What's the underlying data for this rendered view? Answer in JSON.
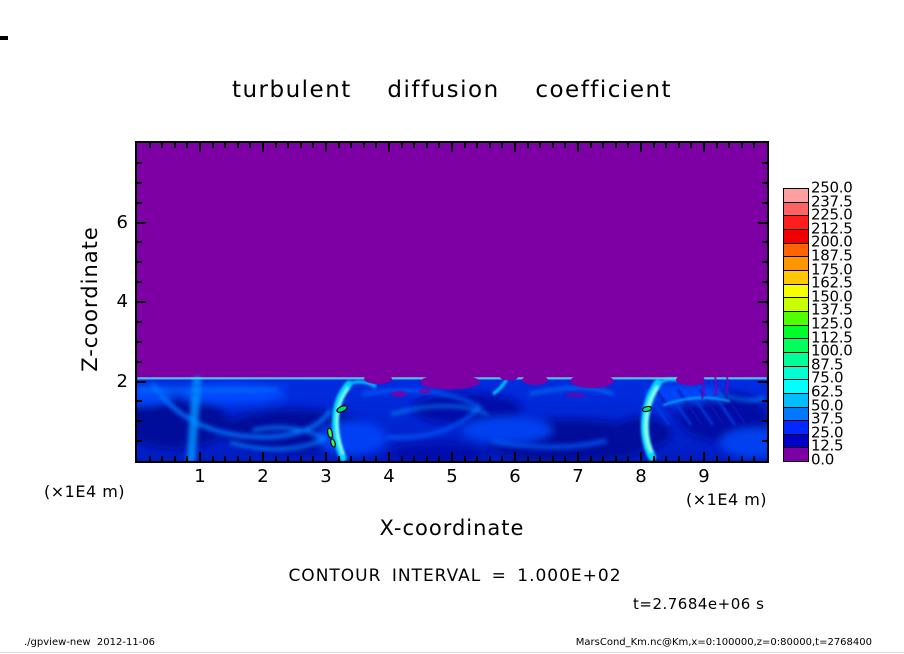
{
  "title": "turbulent  diffusion  coefficient",
  "colors": {
    "page_background": "#ffffff",
    "field_zero_purple": "#7D00A5",
    "layer_base_top": "#002CE0",
    "layer_base_bottom": "#001CC0",
    "interface_line": "#00E1FF",
    "interface_highlight": "#A5FFFF",
    "axis": "#000000"
  },
  "axes": {
    "x_label": "X-coordinate",
    "y_label": "Z-coordinate",
    "x_unit_left": "(×1E4 m)",
    "x_unit_right": "(×1E4 m)",
    "x_ticks": [
      "1",
      "2",
      "3",
      "4",
      "5",
      "6",
      "7",
      "8",
      "9"
    ],
    "y_ticks": [
      "2",
      "4",
      "6"
    ]
  },
  "colorbar": {
    "labels": [
      "250.0",
      "237.5",
      "225.0",
      "212.5",
      "200.0",
      "187.5",
      "175.0",
      "162.5",
      "150.0",
      "137.5",
      "125.0",
      "112.5",
      "100.0",
      "87.5",
      "75.0",
      "62.5",
      "50.0",
      "37.5",
      "25.0",
      "12.5",
      "0.0"
    ],
    "colors": [
      "#FFA0A0",
      "#FF6464",
      "#FF1E1E",
      "#F00000",
      "#FF6400",
      "#FF9600",
      "#FFC800",
      "#F5FF00",
      "#C8FF00",
      "#50FF00",
      "#00FF28",
      "#00FF5A",
      "#00FF96",
      "#00FFD2",
      "#00FFFF",
      "#00BEFF",
      "#0078FF",
      "#0028FF",
      "#0000C8",
      "#7D00A5"
    ]
  },
  "annotations": {
    "contour_interval": "CONTOUR INTERVAL = 1.000E+02",
    "time": "t=2.7684e+06 s"
  },
  "footer": {
    "left": "./gpview-new  2012-11-06",
    "right": "MarsCond_Km.nc@Km,x=0:100000,z=0:80000,t=2768400"
  },
  "chart_data": {
    "type": "heatmap",
    "title": "turbulent diffusion coefficient",
    "xlabel": "X-coordinate (×1E4 m)",
    "ylabel": "Z-coordinate (×1E4 m)",
    "xlim": [
      0,
      10
    ],
    "ylim": [
      0,
      8
    ],
    "value_range": [
      0,
      250
    ],
    "colorbar_level_step": 12.5,
    "contour_interval": "1.000E+02",
    "time_seconds": 2768400,
    "legend_position": "right",
    "grid": false,
    "x": [
      0.5,
      1.5,
      2.5,
      3.5,
      4.5,
      5.5,
      6.5,
      7.5,
      8.5,
      9.5
    ],
    "z": [
      0.25,
      0.75,
      1.25,
      1.75,
      2.5,
      4.0,
      6.0,
      7.5
    ],
    "values": [
      [
        45,
        40,
        45,
        55,
        45,
        40,
        45,
        40,
        50,
        40
      ],
      [
        55,
        30,
        40,
        100,
        35,
        30,
        35,
        30,
        80,
        45
      ],
      [
        50,
        30,
        25,
        75,
        30,
        40,
        25,
        35,
        120,
        40
      ],
      [
        35,
        40,
        30,
        50,
        20,
        45,
        30,
        25,
        60,
        30
      ],
      [
        0,
        0,
        0,
        0,
        0,
        0,
        0,
        0,
        0,
        0
      ],
      [
        0,
        0,
        0,
        0,
        0,
        0,
        0,
        0,
        0,
        0
      ],
      [
        0,
        0,
        0,
        0,
        0,
        0,
        0,
        0,
        0,
        0
      ],
      [
        0,
        0,
        0,
        0,
        0,
        0,
        0,
        0,
        0,
        0
      ]
    ],
    "values_note": "Km estimated from fill colors; field sits in the lowest bin (purple, 0–12.5) above z≈2×1E4 m; turbulent boundary layer below z≈2 with bright cyan plumes near x≈3.2 and x≈8.2"
  }
}
